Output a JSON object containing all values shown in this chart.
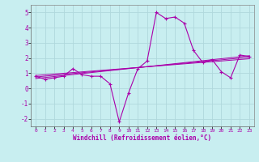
{
  "xlabel": "Windchill (Refroidissement éolien,°C)",
  "ylabel": "",
  "xlim": [
    -0.5,
    23.5
  ],
  "ylim": [
    -2.5,
    5.5
  ],
  "yticks": [
    -2,
    -1,
    0,
    1,
    2,
    3,
    4,
    5
  ],
  "xticks": [
    0,
    1,
    2,
    3,
    4,
    5,
    6,
    7,
    8,
    9,
    10,
    11,
    12,
    13,
    14,
    15,
    16,
    17,
    18,
    19,
    20,
    21,
    22,
    23
  ],
  "bg_color": "#c8eef0",
  "grid_color": "#b0d8dc",
  "line_color": "#aa00aa",
  "tick_color": "#aa00aa",
  "main_data_x": [
    0,
    1,
    2,
    3,
    4,
    5,
    6,
    7,
    8,
    9,
    10,
    11,
    12,
    13,
    14,
    15,
    16,
    17,
    18,
    19,
    20,
    21,
    22,
    23
  ],
  "main_data_y": [
    0.8,
    0.6,
    0.7,
    0.8,
    1.3,
    0.9,
    0.8,
    0.8,
    0.3,
    -2.2,
    -0.3,
    1.3,
    1.8,
    5.0,
    4.6,
    4.7,
    4.3,
    2.5,
    1.7,
    1.9,
    1.1,
    0.7,
    2.2,
    2.1
  ],
  "trend1_y": [
    0.65,
    2.15
  ],
  "trend2_y": [
    0.75,
    2.05
  ],
  "trend3_y": [
    0.85,
    1.95
  ]
}
